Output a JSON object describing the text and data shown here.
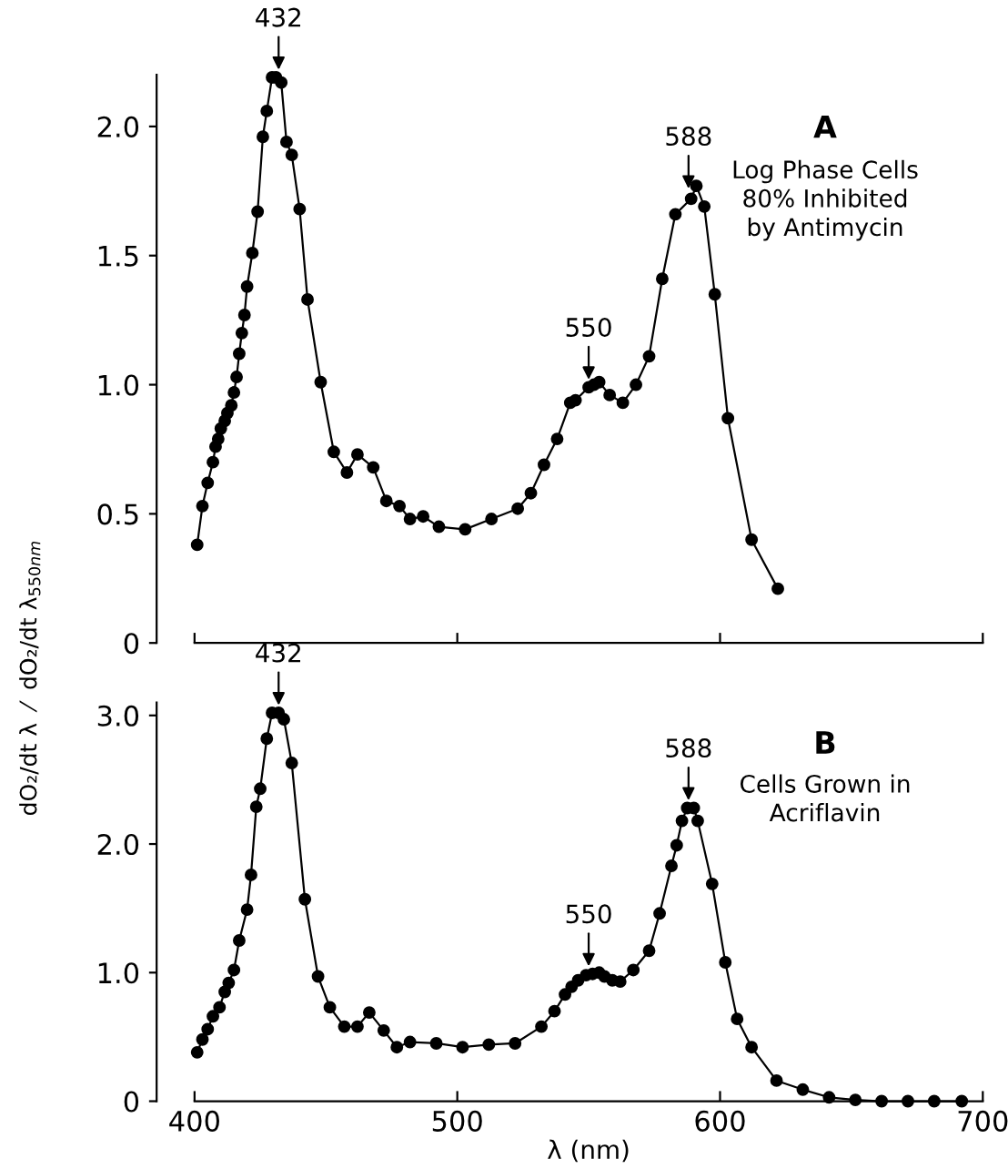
{
  "chart_data": [
    {
      "type": "line",
      "marker": "circle",
      "line_style": "solid",
      "tick_labels": "y",
      "ylabel": "dO₂/dt λ  ⁄  dO₂/dt λ$_{550nm}$",
      "xlim": [
        400,
        700
      ],
      "xticks": [
        400,
        500,
        600,
        700
      ],
      "ylim": [
        0,
        2.2
      ],
      "yticks": [
        0,
        0.5,
        {
          "value": 1.0,
          "label": "1.0"
        },
        1.5,
        {
          "value": 2.0,
          "label": "2.0"
        }
      ],
      "annotations": [
        {
          "text": "432",
          "x": 432,
          "y": 2.19
        },
        {
          "text": "550",
          "x": 550,
          "y": 0.99
        },
        {
          "text": "588",
          "x": 588,
          "y": 1.73
        },
        "A",
        "Log Phase Cells\n80% Inhibited\nby Antimycin"
      ],
      "series": [
        {
          "color": "#000000",
          "x": [
            401,
            403,
            405,
            407,
            408,
            409,
            410,
            411.5,
            412.5,
            414,
            415,
            416,
            417,
            418,
            419,
            420,
            422,
            424,
            426,
            427.5,
            429.5,
            431,
            433,
            435,
            437,
            440,
            443,
            448,
            453,
            458,
            462,
            468,
            473,
            478,
            482,
            487,
            493,
            503,
            513,
            523,
            528,
            533,
            538,
            543,
            545,
            550,
            552,
            554,
            558,
            563,
            568,
            573,
            578,
            583,
            589,
            591,
            594,
            598,
            603,
            612,
            622
          ],
          "values": [
            0.38,
            0.53,
            0.62,
            0.7,
            0.76,
            0.79,
            0.83,
            0.86,
            0.89,
            0.92,
            0.97,
            1.03,
            1.12,
            1.2,
            1.27,
            1.38,
            1.51,
            1.67,
            1.96,
            2.06,
            2.19,
            2.19,
            2.17,
            1.94,
            1.89,
            1.68,
            1.33,
            1.01,
            0.74,
            0.66,
            0.73,
            0.68,
            0.55,
            0.53,
            0.48,
            0.49,
            0.45,
            0.44,
            0.48,
            0.52,
            0.58,
            0.69,
            0.79,
            0.93,
            0.94,
            0.99,
            1.0,
            1.01,
            0.96,
            0.93,
            1.0,
            1.11,
            1.41,
            1.66,
            1.72,
            1.77,
            1.69,
            1.35,
            0.87,
            0.4,
            0.21
          ]
        }
      ]
    },
    {
      "type": "line",
      "marker": "circle",
      "line_style": "solid",
      "xlabel": "λ (nm)",
      "xlim": [
        400,
        700
      ],
      "xticks": [
        400,
        500,
        600,
        700
      ],
      "ylim": [
        0,
        3.1
      ],
      "yticks": [
        0,
        {
          "value": 1.0,
          "label": "1.0"
        },
        {
          "value": 2.0,
          "label": "2.0"
        },
        {
          "value": 3.0,
          "label": "3.0"
        }
      ],
      "annotations": [
        {
          "text": "432",
          "x": 432,
          "y": 3.02
        },
        {
          "text": "550",
          "x": 550,
          "y": 0.99
        },
        {
          "text": "588",
          "x": 588,
          "y": 2.28
        },
        "B",
        "Cells Grown in\nAcriflavin"
      ],
      "series": [
        {
          "color": "#000000",
          "x": [
            401,
            403,
            405,
            407,
            409.5,
            411.5,
            413,
            415,
            417,
            420,
            421.5,
            423.5,
            425,
            427.5,
            429.5,
            432,
            434,
            437,
            442,
            447,
            451.5,
            457,
            462,
            466.5,
            472,
            477,
            482,
            492,
            502,
            512,
            522,
            532,
            537,
            541,
            543.5,
            546,
            549,
            551.5,
            554,
            556,
            559,
            562,
            567,
            573,
            577,
            581.5,
            583.5,
            585.5,
            587.5,
            590,
            591.5,
            597,
            602,
            606.5,
            612,
            621.5,
            631.5,
            641.5,
            651.5,
            661.5,
            671.5,
            681.5,
            692
          ],
          "values": [
            0.38,
            0.48,
            0.56,
            0.66,
            0.73,
            0.85,
            0.92,
            1.02,
            1.25,
            1.49,
            1.76,
            2.29,
            2.43,
            2.82,
            3.02,
            3.02,
            2.97,
            2.63,
            1.57,
            0.97,
            0.73,
            0.58,
            0.58,
            0.69,
            0.55,
            0.42,
            0.46,
            0.45,
            0.42,
            0.44,
            0.45,
            0.58,
            0.7,
            0.83,
            0.89,
            0.94,
            0.98,
            0.99,
            1.0,
            0.97,
            0.94,
            0.93,
            1.02,
            1.17,
            1.46,
            1.83,
            1.99,
            2.18,
            2.28,
            2.28,
            2.18,
            1.69,
            1.08,
            0.64,
            0.42,
            0.16,
            0.09,
            0.03,
            0.01,
            0,
            0,
            0,
            0
          ]
        }
      ]
    }
  ]
}
